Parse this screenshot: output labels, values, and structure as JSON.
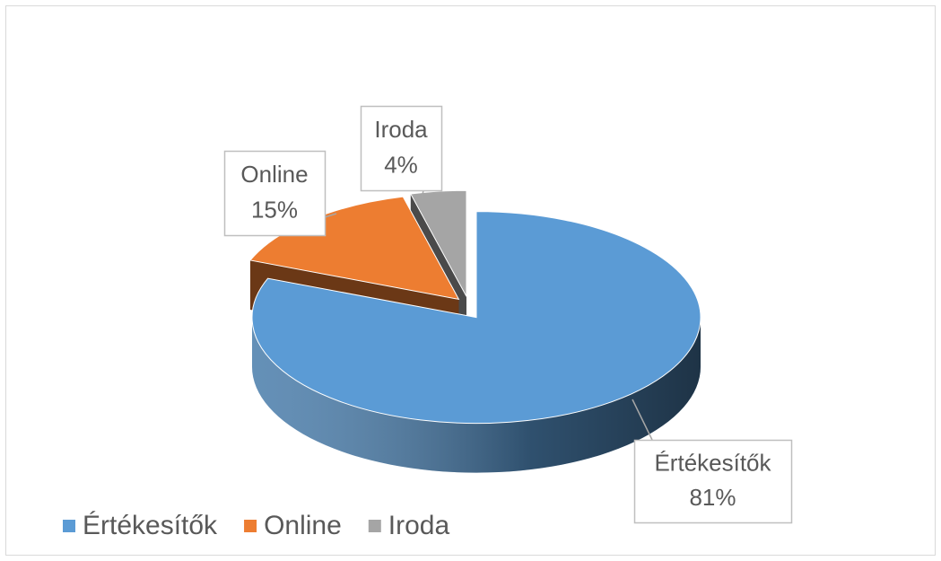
{
  "chart_data": {
    "type": "pie",
    "categories": [
      "Értékesítők",
      "Online",
      "Iroda"
    ],
    "values": [
      81,
      15,
      4
    ],
    "value_labels": [
      "81%",
      "15%",
      "4%"
    ],
    "colors": [
      "#5b9bd5",
      "#ed7d31",
      "#a5a5a5"
    ],
    "legend": "bottom-left",
    "three_d": true
  }
}
